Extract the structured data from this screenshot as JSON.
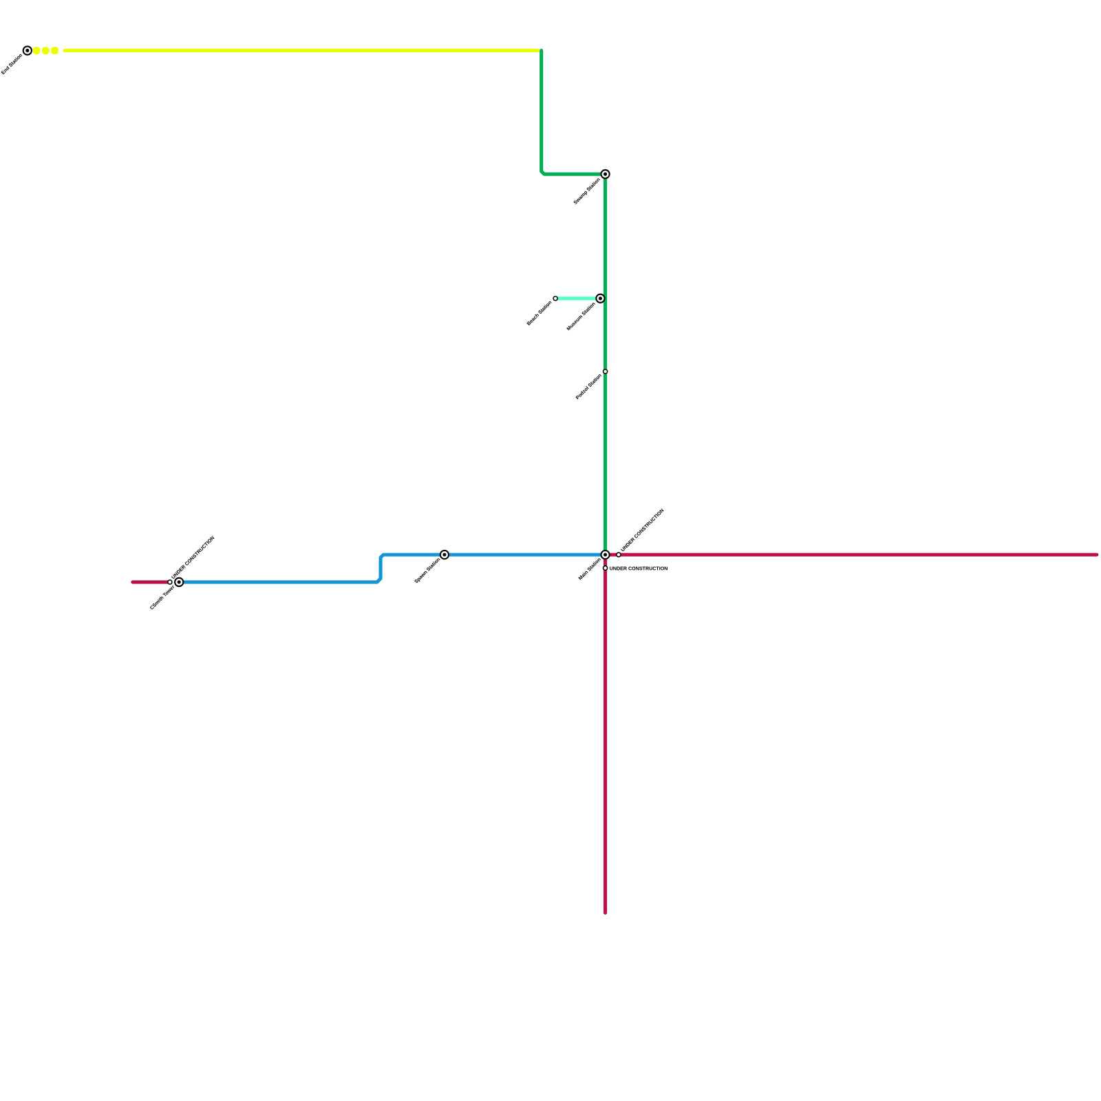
{
  "stations": [
    {
      "label": "End Station"
    },
    {
      "label": "Swamp Station"
    },
    {
      "label": "Beach Station"
    },
    {
      "label": "Museum Station"
    },
    {
      "label": "Podzol Station"
    },
    {
      "label": "Spawn Station"
    },
    {
      "label": "Main Station"
    },
    {
      "label": "CSmith Tower"
    },
    {
      "label": "UNDER CONSTRUCTION"
    },
    {
      "label": "UNDER CONSTRUCTION"
    },
    {
      "label": "UNDER CONSTRUCTION"
    }
  ]
}
